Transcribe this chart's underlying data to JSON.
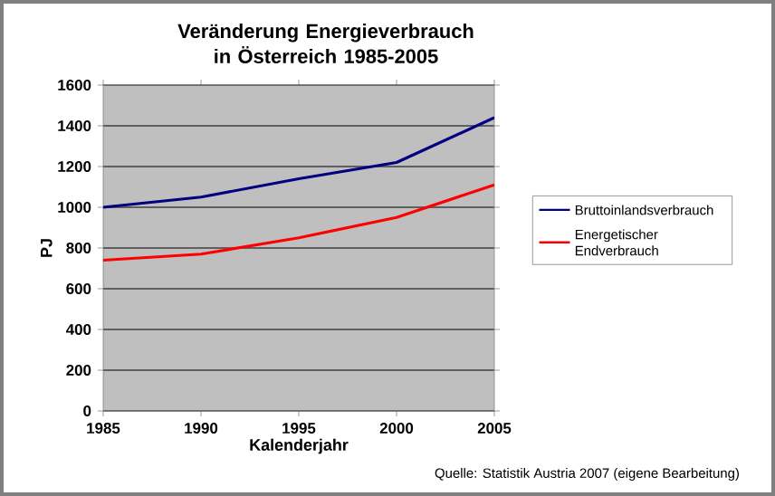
{
  "chart_data": {
    "type": "line",
    "title": "Veränderung Energieverbrauch in Österreich 1985-2005",
    "xlabel": "Kalenderjahr",
    "ylabel": "PJ",
    "x": [
      1985,
      1990,
      1995,
      2000,
      2005
    ],
    "series": [
      {
        "name": "Bruttoinlandsverbrauch",
        "color": "#000080",
        "values": [
          1000,
          1050,
          1140,
          1220,
          1440
        ]
      },
      {
        "name": "Energetischer Endverbrauch",
        "color": "#ff0000",
        "values": [
          740,
          770,
          850,
          950,
          1110
        ]
      }
    ],
    "xlim": [
      1985,
      2005
    ],
    "xticks": [
      1985,
      1990,
      1995,
      2000,
      2005
    ],
    "ylim": [
      0,
      1600
    ],
    "yticks": [
      0,
      200,
      400,
      600,
      800,
      1000,
      1200,
      1400,
      1600
    ],
    "grid": "y",
    "legend": "right",
    "marker": "none",
    "line_style": "solid",
    "annotations": [
      "Quelle: Statistik Austria 2007 (eigene Bearbeitung)"
    ]
  }
}
